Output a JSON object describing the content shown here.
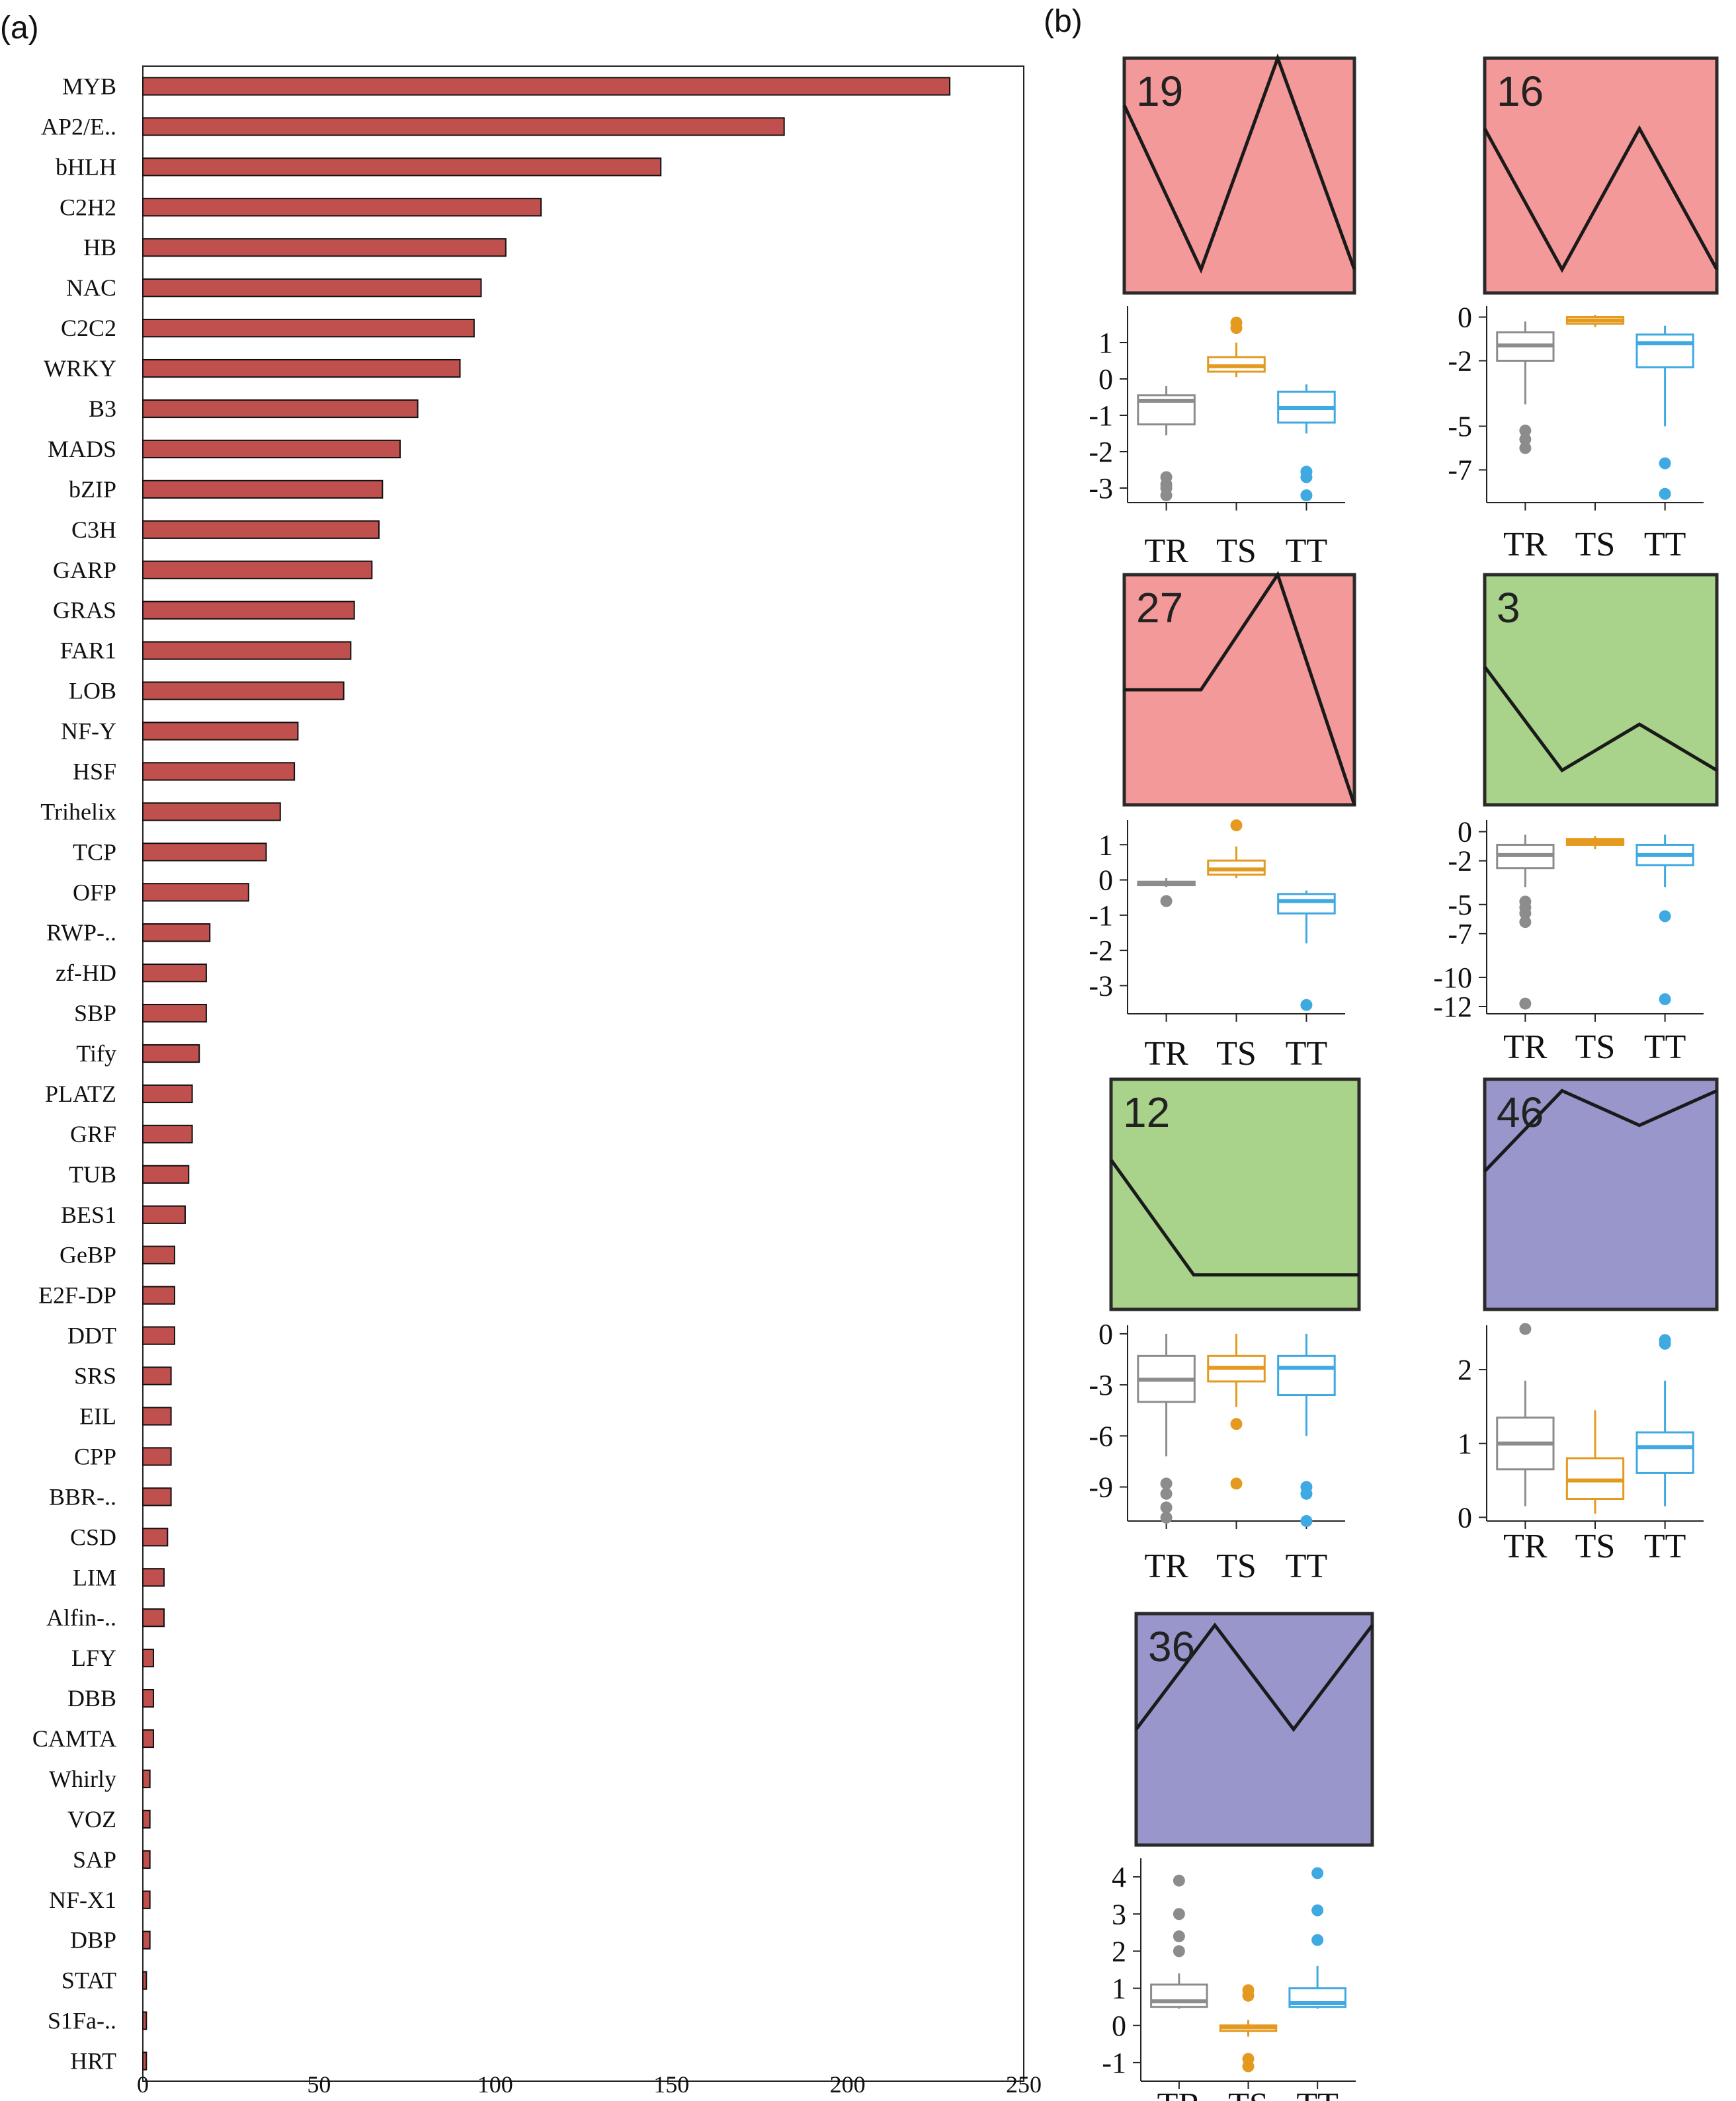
{
  "panel_a": {
    "label": "(a)",
    "chart_data": {
      "type": "bar",
      "orientation": "horizontal",
      "title": "",
      "xlabel": "",
      "ylabel": "",
      "xlim": [
        0,
        250
      ],
      "xticks": [
        0,
        50,
        100,
        150,
        200,
        250
      ],
      "bar_color": "#c0504d",
      "categories": [
        "MYB",
        "AP2/E..",
        "bHLH",
        "C2H2",
        "HB",
        "NAC",
        "C2C2",
        "WRKY",
        "B3",
        "MADS",
        "bZIP",
        "C3H",
        "GARP",
        "GRAS",
        "FAR1",
        "LOB",
        "NF-Y",
        "HSF",
        "Trihelix",
        "TCP",
        "OFP",
        "RWP-..",
        "zf-HD",
        "SBP",
        "Tify",
        "PLATZ",
        "GRF",
        "TUB",
        "BES1",
        "GeBP",
        "E2F-DP",
        "DDT",
        "SRS",
        "EIL",
        "CPP",
        "BBR-..",
        "CSD",
        "LIM",
        "Alfin-..",
        "LFY",
        "DBB",
        "CAMTA",
        "Whirly",
        "VOZ",
        "SAP",
        "NF-X1",
        "DBP",
        "STAT",
        "S1Fa-..",
        "HRT"
      ],
      "values": [
        229,
        182,
        147,
        113,
        103,
        96,
        94,
        90,
        78,
        73,
        68,
        67,
        65,
        60,
        59,
        57,
        44,
        43,
        39,
        35,
        30,
        19,
        18,
        18,
        16,
        14,
        14,
        13,
        12,
        9,
        9,
        9,
        8,
        8,
        8,
        8,
        7,
        6,
        6,
        3,
        3,
        3,
        2,
        2,
        2,
        2,
        2,
        1,
        1,
        1
      ]
    }
  },
  "panel_b": {
    "label": "(b)",
    "x_categories": [
      "TR",
      "TS",
      "TT"
    ],
    "colors": {
      "red_cluster": "#f4999a",
      "green_cluster": "#a9d38b",
      "blue_cluster": "#9896cb",
      "TR": "#8c8c8c",
      "TS": "#e39a1f",
      "TT": "#3fa9e1"
    },
    "chart_data": [
      {
        "type": "boxplot",
        "cluster": "19",
        "cluster_color": "red",
        "profile": [
          0.8,
          0.1,
          1.0,
          0.1
        ],
        "ylim": [
          -3.4,
          2.0
        ],
        "yticks": [
          1,
          0,
          -1,
          -2,
          -3
        ],
        "boxes": [
          {
            "group": "TR",
            "whislo": -1.55,
            "q1": -1.25,
            "med": -0.6,
            "q3": -0.45,
            "whishi": -0.2,
            "fliers": [
              -2.7,
              -2.9,
              -3.0,
              -3.2
            ]
          },
          {
            "group": "TS",
            "whislo": 0.05,
            "q1": 0.2,
            "med": 0.35,
            "q3": 0.6,
            "whishi": 1.0,
            "fliers": [
              1.4,
              1.55
            ]
          },
          {
            "group": "TT",
            "whislo": -1.5,
            "q1": -1.2,
            "med": -0.8,
            "q3": -0.35,
            "whishi": -0.15,
            "fliers": [
              -2.55,
              -2.7,
              -3.2
            ]
          }
        ]
      },
      {
        "type": "boxplot",
        "cluster": "16",
        "cluster_color": "red",
        "profile": [
          0.7,
          0.1,
          0.7,
          0.1
        ],
        "ylim": [
          -8.5,
          0.5
        ],
        "yticks": [
          0,
          -2,
          -5,
          -7
        ],
        "boxes": [
          {
            "group": "TR",
            "whislo": -4.0,
            "q1": -2.0,
            "med": -1.3,
            "q3": -0.7,
            "whishi": -0.2,
            "fliers": [
              -5.2,
              -5.6,
              -6.0
            ]
          },
          {
            "group": "TS",
            "whislo": -0.45,
            "q1": -0.3,
            "med": -0.15,
            "q3": 0.0,
            "whishi": 0.1,
            "fliers": []
          },
          {
            "group": "TT",
            "whislo": -5.0,
            "q1": -2.3,
            "med": -1.2,
            "q3": -0.8,
            "whishi": -0.4,
            "fliers": [
              -6.7,
              -8.1
            ]
          }
        ]
      },
      {
        "type": "boxplot",
        "cluster": "27",
        "cluster_color": "red",
        "profile": [
          0.5,
          0.5,
          1.0,
          0.0
        ],
        "ylim": [
          -3.8,
          1.7
        ],
        "yticks": [
          1,
          0,
          -1,
          -2,
          -3
        ],
        "boxes": [
          {
            "group": "TR",
            "whislo": -0.2,
            "q1": -0.15,
            "med": -0.1,
            "q3": -0.05,
            "whishi": 0.05,
            "fliers": [
              -0.6
            ]
          },
          {
            "group": "TS",
            "whislo": 0.05,
            "q1": 0.15,
            "med": 0.3,
            "q3": 0.55,
            "whishi": 0.95,
            "fliers": [
              1.55
            ]
          },
          {
            "group": "TT",
            "whislo": -1.8,
            "q1": -0.95,
            "med": -0.6,
            "q3": -0.4,
            "whishi": -0.3,
            "fliers": [
              -3.55
            ]
          }
        ]
      },
      {
        "type": "boxplot",
        "cluster": "3",
        "cluster_color": "green",
        "profile": [
          0.6,
          0.15,
          0.35,
          0.15
        ],
        "ylim": [
          -12.5,
          0.8
        ],
        "yticks": [
          0,
          -2,
          -5,
          -7,
          -10,
          -12
        ],
        "boxes": [
          {
            "group": "TR",
            "whislo": -3.8,
            "q1": -2.5,
            "med": -1.6,
            "q3": -0.9,
            "whishi": -0.2,
            "fliers": [
              -4.8,
              -5.2,
              -5.6,
              -6.2,
              -11.8
            ]
          },
          {
            "group": "TS",
            "whislo": -1.2,
            "q1": -0.9,
            "med": -0.7,
            "q3": -0.5,
            "whishi": -0.3,
            "fliers": []
          },
          {
            "group": "TT",
            "whislo": -3.8,
            "q1": -2.3,
            "med": -1.6,
            "q3": -0.9,
            "whishi": -0.2,
            "fliers": [
              -5.8,
              -11.5
            ]
          }
        ]
      },
      {
        "type": "boxplot",
        "cluster": "12",
        "cluster_color": "green",
        "profile": [
          0.65,
          0.15,
          0.15,
          0.15
        ],
        "ylim": [
          -11,
          0.5
        ],
        "yticks": [
          0,
          -3,
          -6,
          -9
        ],
        "boxes": [
          {
            "group": "TR",
            "whislo": -7.2,
            "q1": -4.0,
            "med": -2.7,
            "q3": -1.3,
            "whishi": 0.0,
            "fliers": [
              -8.8,
              -9.4,
              -10.2,
              -10.8
            ]
          },
          {
            "group": "TS",
            "whislo": -4.3,
            "q1": -2.8,
            "med": -2.0,
            "q3": -1.3,
            "whishi": 0.0,
            "fliers": [
              -5.3,
              -8.8
            ]
          },
          {
            "group": "TT",
            "whislo": -6.0,
            "q1": -3.6,
            "med": -2.0,
            "q3": -1.3,
            "whishi": 0.0,
            "fliers": [
              -9.0,
              -9.4,
              -11.0
            ]
          }
        ]
      },
      {
        "type": "boxplot",
        "cluster": "46",
        "cluster_color": "blue",
        "profile": [
          0.6,
          0.95,
          0.8,
          0.95
        ],
        "ylim": [
          -0.05,
          2.6
        ],
        "yticks": [
          2,
          1,
          0
        ],
        "boxes": [
          {
            "group": "TR",
            "whislo": 0.15,
            "q1": 0.65,
            "med": 1.0,
            "q3": 1.35,
            "whishi": 1.85,
            "fliers": [
              2.55
            ]
          },
          {
            "group": "TS",
            "whislo": 0.05,
            "q1": 0.25,
            "med": 0.5,
            "q3": 0.8,
            "whishi": 1.45,
            "fliers": []
          },
          {
            "group": "TT",
            "whislo": 0.15,
            "q1": 0.6,
            "med": 0.95,
            "q3": 1.15,
            "whishi": 1.85,
            "fliers": [
              2.35,
              2.4
            ]
          }
        ]
      },
      {
        "type": "boxplot",
        "cluster": "36",
        "cluster_color": "blue",
        "profile": [
          0.5,
          0.95,
          0.5,
          0.95
        ],
        "ylim": [
          -1.5,
          4.5
        ],
        "yticks": [
          4,
          3,
          2,
          1,
          0,
          -1
        ],
        "boxes": [
          {
            "group": "TR",
            "whislo": 0.45,
            "q1": 0.5,
            "med": 0.65,
            "q3": 1.1,
            "whishi": 1.4,
            "fliers": [
              2.0,
              2.4,
              3.0,
              3.9
            ]
          },
          {
            "group": "TS",
            "whislo": -0.3,
            "q1": -0.15,
            "med": -0.05,
            "q3": 0.0,
            "whishi": 0.15,
            "fliers": [
              -0.9,
              -1.1,
              0.8,
              0.95
            ]
          },
          {
            "group": "TT",
            "whislo": 0.45,
            "q1": 0.5,
            "med": 0.6,
            "q3": 1.0,
            "whishi": 1.6,
            "fliers": [
              2.3,
              3.1,
              4.1
            ]
          }
        ]
      }
    ]
  }
}
